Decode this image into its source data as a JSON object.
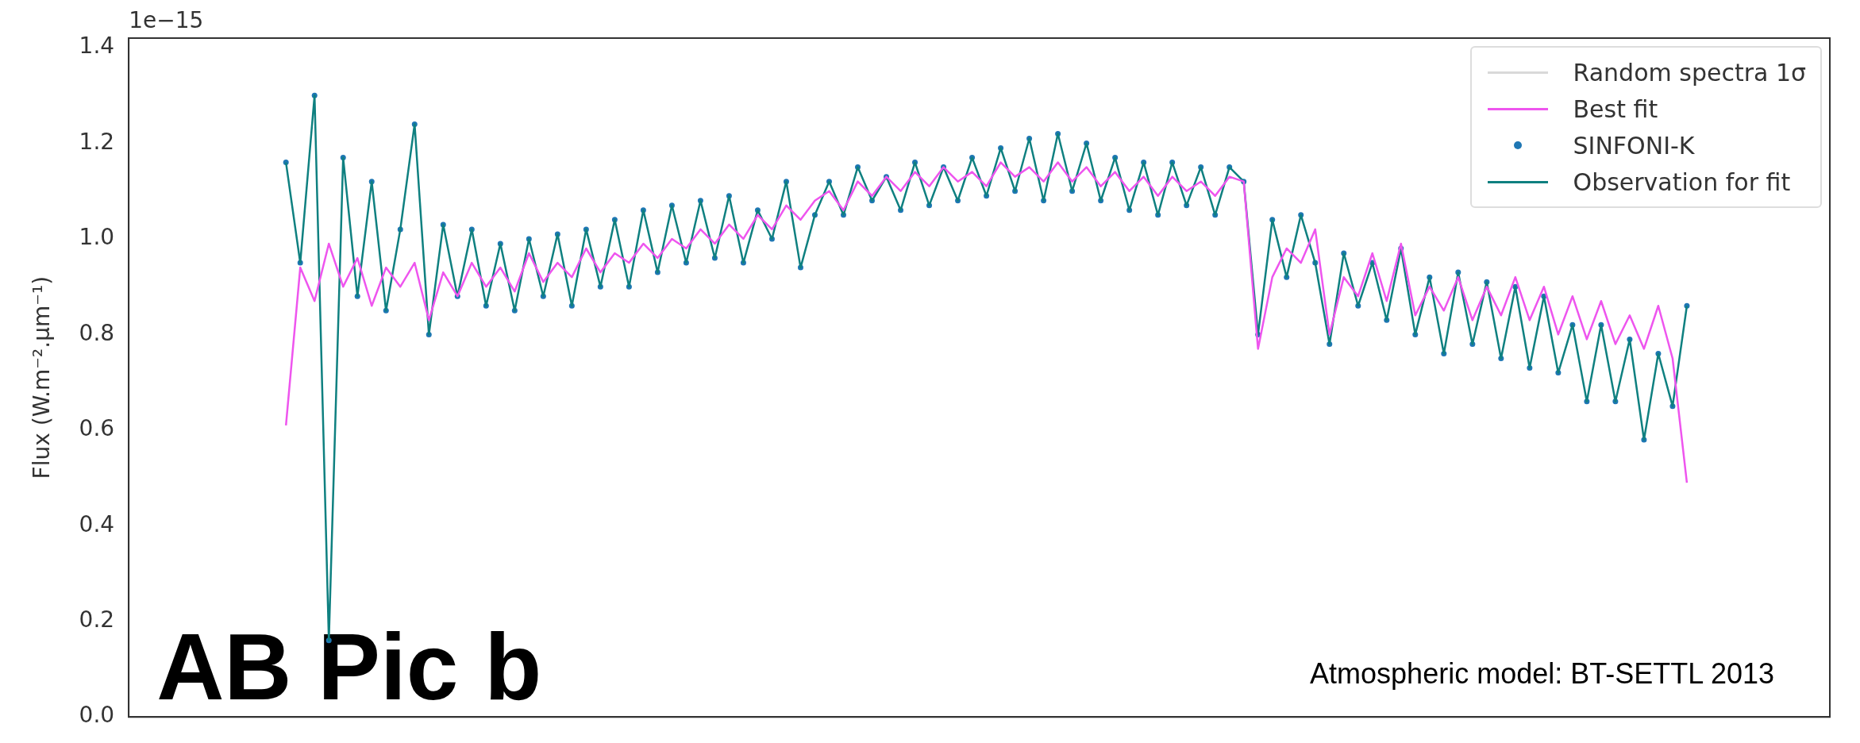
{
  "chart_data": {
    "type": "line",
    "ylabel": "Flux (W.m⁻².µm⁻¹)",
    "annotations": [
      "1e−15",
      "AB Pic b",
      "Atmospheric model: BT-SETTL 2013"
    ],
    "categories": [
      null,
      null,
      null,
      null,
      null,
      null,
      null,
      null,
      null,
      null,
      null,
      null,
      null,
      null,
      null,
      null,
      null,
      null,
      null,
      null,
      null,
      null,
      null,
      null,
      null,
      null,
      null,
      null,
      null,
      null,
      null,
      null,
      null,
      null,
      null,
      null,
      null,
      null,
      null,
      null,
      null,
      null,
      null,
      null,
      null,
      null,
      null,
      null,
      null,
      null,
      null,
      null,
      null,
      null,
      null,
      null,
      null,
      null,
      null,
      null,
      null,
      null,
      null,
      null,
      null,
      null,
      null,
      null,
      null,
      null,
      null,
      null,
      null,
      null,
      null,
      null,
      null,
      null,
      null,
      null,
      null,
      null,
      null,
      null,
      null,
      null,
      null,
      null,
      null,
      null,
      null,
      null,
      null,
      null,
      null,
      null,
      null,
      null,
      null,
      null,
      null,
      null,
      null,
      null,
      null,
      null,
      null,
      null,
      null,
      null,
      null,
      null,
      null,
      null,
      null,
      null,
      null,
      null,
      null,
      null
    ],
    "series": [
      {
        "name": "Random spectra 1σ",
        "color": "#d9d9d9",
        "values": [
          null,
          null,
          null,
          null,
          null,
          null,
          null,
          null,
          null,
          null,
          null,
          null,
          null,
          null,
          null,
          null,
          null,
          null,
          null,
          null,
          null,
          null,
          null,
          null,
          null,
          null,
          null,
          null,
          null,
          null,
          null,
          null,
          null,
          null,
          null,
          null,
          null,
          null,
          null,
          null,
          null,
          null,
          null,
          null,
          null,
          null,
          null,
          null,
          null,
          null,
          null,
          null,
          null,
          null,
          null,
          null,
          null,
          null,
          null,
          null,
          null,
          null,
          null,
          null,
          null,
          null,
          null,
          null,
          null,
          null,
          null,
          null,
          null,
          null,
          null,
          null,
          null,
          null,
          null,
          null,
          null,
          null,
          null,
          null,
          null,
          null,
          null,
          null,
          null,
          null,
          null,
          null,
          null,
          null,
          null,
          null,
          null,
          null,
          null,
          null,
          null,
          null,
          null,
          null,
          null,
          null,
          null,
          null,
          null,
          null,
          null,
          null,
          null,
          null,
          null,
          null,
          null,
          null,
          null,
          null
        ]
      },
      {
        "name": "Best fit",
        "color": "#ee55ee",
        "values": [
          null,
          null,
          null,
          null,
          null,
          null,
          null,
          null,
          null,
          null,
          null,
          0.61,
          0.94,
          0.87,
          0.99,
          0.9,
          0.96,
          0.86,
          0.94,
          0.9,
          0.95,
          0.83,
          0.93,
          0.88,
          0.95,
          0.9,
          0.94,
          0.89,
          0.97,
          0.91,
          0.95,
          0.92,
          0.98,
          0.93,
          0.97,
          0.95,
          0.99,
          0.96,
          1.0,
          0.98,
          1.02,
          0.99,
          1.03,
          1.0,
          1.05,
          1.02,
          1.07,
          1.04,
          1.08,
          1.1,
          1.06,
          1.12,
          1.09,
          1.13,
          1.1,
          1.14,
          1.11,
          1.15,
          1.12,
          1.14,
          1.11,
          1.16,
          1.13,
          1.15,
          1.12,
          1.16,
          1.12,
          1.15,
          1.11,
          1.14,
          1.1,
          1.13,
          1.09,
          1.13,
          1.1,
          1.12,
          1.09,
          1.13,
          1.12,
          0.77,
          0.92,
          0.98,
          0.95,
          1.02,
          0.8,
          0.92,
          0.88,
          0.97,
          0.87,
          0.99,
          0.84,
          0.9,
          0.85,
          0.92,
          0.83,
          0.9,
          0.84,
          0.92,
          0.83,
          0.9,
          0.8,
          0.88,
          0.79,
          0.87,
          0.78,
          0.84,
          0.77,
          0.86,
          0.75,
          0.49,
          null,
          null,
          null,
          null,
          null,
          null,
          null,
          null,
          null,
          null
        ]
      },
      {
        "name": "SINFONI-K",
        "type": "scatter",
        "marker": "circle",
        "color": "#1f77b4",
        "values": [
          null,
          null,
          null,
          null,
          null,
          null,
          null,
          null,
          null,
          null,
          null,
          1.16,
          0.95,
          1.3,
          0.16,
          1.17,
          0.88,
          1.12,
          0.85,
          1.02,
          1.24,
          0.8,
          1.03,
          0.88,
          1.02,
          0.86,
          0.99,
          0.85,
          1.0,
          0.88,
          1.01,
          0.86,
          1.02,
          0.9,
          1.04,
          0.9,
          1.06,
          0.93,
          1.07,
          0.95,
          1.08,
          0.96,
          1.09,
          0.95,
          1.06,
          1.0,
          1.12,
          0.94,
          1.05,
          1.12,
          1.05,
          1.15,
          1.08,
          1.13,
          1.06,
          1.16,
          1.07,
          1.15,
          1.08,
          1.17,
          1.09,
          1.19,
          1.1,
          1.21,
          1.08,
          1.22,
          1.1,
          1.2,
          1.08,
          1.17,
          1.06,
          1.16,
          1.05,
          1.16,
          1.07,
          1.15,
          1.05,
          1.15,
          1.12,
          0.8,
          1.04,
          0.92,
          1.05,
          0.95,
          0.78,
          0.97,
          0.86,
          0.95,
          0.83,
          0.98,
          0.8,
          0.92,
          0.76,
          0.93,
          0.78,
          0.91,
          0.75,
          0.9,
          0.73,
          0.88,
          0.72,
          0.82,
          0.66,
          0.82,
          0.66,
          0.79,
          0.58,
          0.76,
          0.65,
          0.86,
          null,
          null,
          null,
          null,
          null,
          null,
          null,
          null,
          null,
          null
        ]
      },
      {
        "name": "Observation for fit",
        "color": "#0f8080",
        "values": [
          null,
          null,
          null,
          null,
          null,
          null,
          null,
          null,
          null,
          null,
          null,
          1.16,
          0.95,
          1.3,
          0.16,
          1.17,
          0.88,
          1.12,
          0.85,
          1.02,
          1.24,
          0.8,
          1.03,
          0.88,
          1.02,
          0.86,
          0.99,
          0.85,
          1.0,
          0.88,
          1.01,
          0.86,
          1.02,
          0.9,
          1.04,
          0.9,
          1.06,
          0.93,
          1.07,
          0.95,
          1.08,
          0.96,
          1.09,
          0.95,
          1.06,
          1.0,
          1.12,
          0.94,
          1.05,
          1.12,
          1.05,
          1.15,
          1.08,
          1.13,
          1.06,
          1.16,
          1.07,
          1.15,
          1.08,
          1.17,
          1.09,
          1.19,
          1.1,
          1.21,
          1.08,
          1.22,
          1.1,
          1.2,
          1.08,
          1.17,
          1.06,
          1.16,
          1.05,
          1.16,
          1.07,
          1.15,
          1.05,
          1.15,
          1.12,
          0.8,
          1.04,
          0.92,
          1.05,
          0.95,
          0.78,
          0.97,
          0.86,
          0.95,
          0.83,
          0.98,
          0.8,
          0.92,
          0.76,
          0.93,
          0.78,
          0.91,
          0.75,
          0.9,
          0.73,
          0.88,
          0.72,
          0.82,
          0.66,
          0.82,
          0.66,
          0.79,
          0.58,
          0.76,
          0.65,
          0.86,
          null,
          null,
          null,
          null,
          null,
          null,
          null,
          null,
          null,
          null
        ]
      }
    ],
    "ylim": [
      0,
      1.42
    ],
    "yticks": [
      {
        "value": 0,
        "label": "0.0"
      },
      0.2,
      0.4,
      0.6,
      0.8,
      {
        "value": 1,
        "label": "1.0"
      },
      1.2,
      1.4
    ],
    "grid": false,
    "legend": "top right",
    "tick_labels": "y"
  }
}
